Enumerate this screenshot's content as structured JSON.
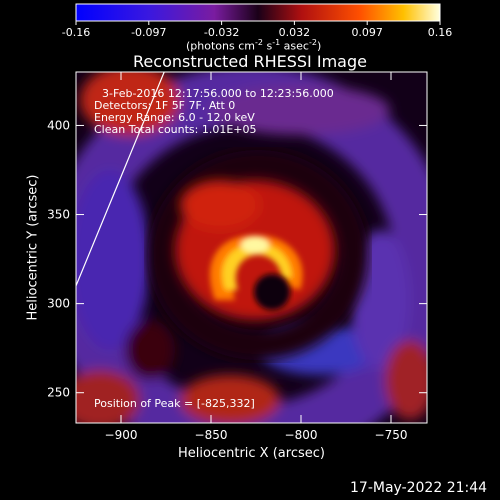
{
  "colorbar": {
    "ticks": [
      "-0.16",
      "-0.097",
      "-0.032",
      "0.032",
      "0.097",
      "0.16"
    ],
    "unit_main": "(photons cm",
    "unit_exp1": "-2",
    "unit_mid": " s",
    "unit_exp2": "-1",
    "unit_mid2": " asec",
    "unit_exp3": "-2",
    "unit_end": ")",
    "range": [
      -0.16,
      0.16
    ]
  },
  "title": "Reconstructed RHESSI Image",
  "annotations": {
    "time": "3-Feb-2016 12:17:56.000 to 12:23:56.000",
    "detectors": "Detectors: 1F 5F 7F, Att 0",
    "energy": "Energy Range: 6.0 - 12.0 keV",
    "clean": "Clean    Total counts: 1.01E+05",
    "peak": "Position of Peak = [-825,332]"
  },
  "footer": {
    "timestamp": "17-May-2022 21:44"
  },
  "chart_data": {
    "type": "heatmap",
    "title": "Reconstructed RHESSI Image",
    "xlabel": "Heliocentric X (arcsec)",
    "ylabel": "Heliocentric Y (arcsec)",
    "xlim": [
      -925,
      -730
    ],
    "ylim": [
      233,
      430
    ],
    "xticks": [
      {
        "value": -900,
        "label": "−900"
      },
      {
        "value": -850,
        "label": "−850"
      },
      {
        "value": -800,
        "label": "−800"
      },
      {
        "value": -750,
        "label": "−750"
      }
    ],
    "yticks": [
      {
        "value": 250,
        "label": "250"
      },
      {
        "value": 300,
        "label": "300"
      },
      {
        "value": 350,
        "label": "350"
      },
      {
        "value": 400,
        "label": "400"
      }
    ],
    "peak": {
      "x": -825,
      "y": 332
    },
    "limb_line": [
      [
        -925,
        310
      ],
      [
        -876,
        430
      ]
    ],
    "grid": false
  }
}
